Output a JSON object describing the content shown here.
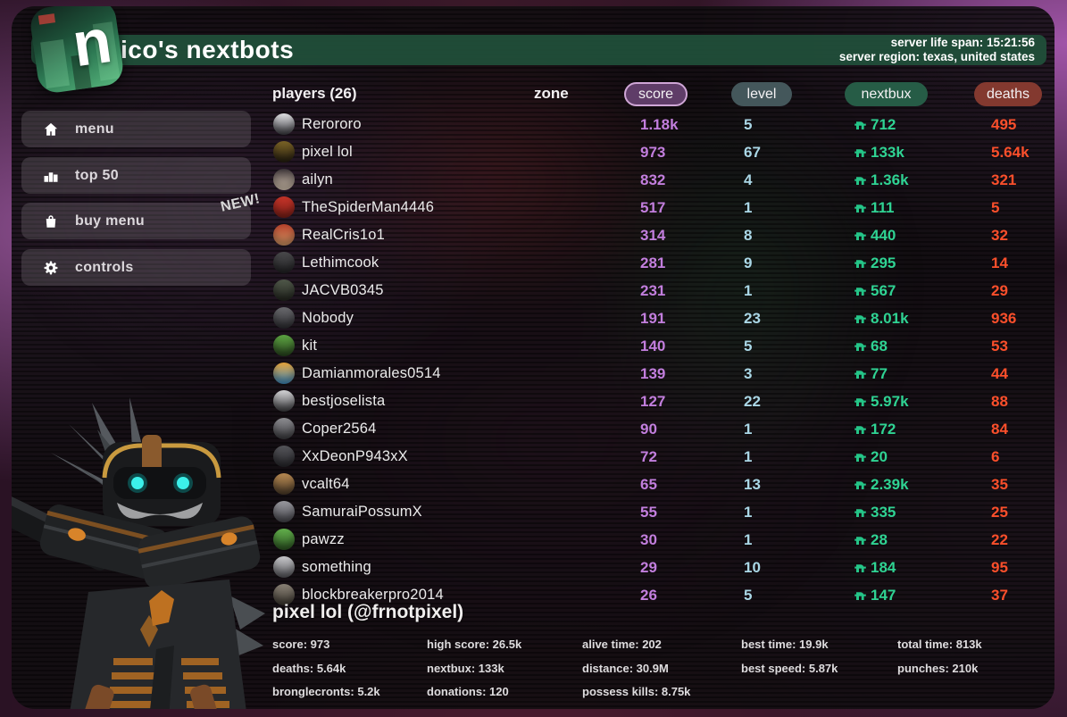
{
  "header": {
    "logo_letter": "n",
    "title": "ico's nextbots",
    "server_life_span": "server life span: 15:21:56",
    "server_region": "server region: texas, united states"
  },
  "sidebar": {
    "items": [
      {
        "label": "menu",
        "icon": "home-icon"
      },
      {
        "label": "top 50",
        "icon": "podium-icon"
      },
      {
        "label": "buy menu",
        "icon": "shopping-bag-icon",
        "badge": "NEW!"
      },
      {
        "label": "controls",
        "icon": "gear-icon"
      }
    ]
  },
  "leaderboard": {
    "players_header": "players (26)",
    "zone_header": "zone",
    "columns": [
      {
        "label": "score"
      },
      {
        "label": "level"
      },
      {
        "label": "nextbux"
      },
      {
        "label": "deaths"
      }
    ],
    "rows": [
      {
        "name": "Rerororo",
        "score": "1.18k",
        "level": "5",
        "nextbux": "712",
        "deaths": "495",
        "avatar": [
          "#e3e3e6",
          "#3a3a40"
        ]
      },
      {
        "name": "pixel lol",
        "score": "973",
        "level": "67",
        "nextbux": "133k",
        "deaths": "5.64k",
        "avatar": [
          "#7c6426",
          "#241d10"
        ]
      },
      {
        "name": "ailyn",
        "score": "832",
        "level": "4",
        "nextbux": "1.36k",
        "deaths": "321",
        "avatar": [
          "#3a3336",
          "#e4d2bd"
        ]
      },
      {
        "name": "TheSpiderMan4446",
        "score": "517",
        "level": "1",
        "nextbux": "111",
        "deaths": "5",
        "avatar": [
          "#c63429",
          "#7e1f17"
        ]
      },
      {
        "name": "RealCris1o1",
        "score": "314",
        "level": "8",
        "nextbux": "440",
        "deaths": "32",
        "avatar": [
          "#b5412c",
          "#d69a66"
        ]
      },
      {
        "name": "Lethimcook",
        "score": "281",
        "level": "9",
        "nextbux": "295",
        "deaths": "14",
        "avatar": [
          "#4a4a4c",
          "#222224"
        ]
      },
      {
        "name": "JACVB0345",
        "score": "231",
        "level": "1",
        "nextbux": "567",
        "deaths": "29",
        "avatar": [
          "#50584a",
          "#23261f"
        ]
      },
      {
        "name": "Nobody",
        "score": "191",
        "level": "23",
        "nextbux": "8.01k",
        "deaths": "936",
        "avatar": [
          "#6a6a6e",
          "#2c2c30"
        ]
      },
      {
        "name": "kit",
        "score": "140",
        "level": "5",
        "nextbux": "68",
        "deaths": "53",
        "avatar": [
          "#5da442",
          "#27431d"
        ]
      },
      {
        "name": "Damianmorales0514",
        "score": "139",
        "level": "3",
        "nextbux": "77",
        "deaths": "44",
        "avatar": [
          "#e8a33a",
          "#3f8ec4"
        ]
      },
      {
        "name": "bestjoselista",
        "score": "127",
        "level": "22",
        "nextbux": "5.97k",
        "deaths": "88",
        "avatar": [
          "#d6d6d8",
          "#3c3c40"
        ]
      },
      {
        "name": "Coper2564",
        "score": "90",
        "level": "1",
        "nextbux": "172",
        "deaths": "84",
        "avatar": [
          "#8e8e92",
          "#3a3a3e"
        ]
      },
      {
        "name": "XxDeonP943xX",
        "score": "72",
        "level": "1",
        "nextbux": "20",
        "deaths": "6",
        "avatar": [
          "#55555a",
          "#27272b"
        ]
      },
      {
        "name": "vcalt64",
        "score": "65",
        "level": "13",
        "nextbux": "2.39k",
        "deaths": "35",
        "avatar": [
          "#b98a52",
          "#4a3a28"
        ]
      },
      {
        "name": "SamuraiPossumX",
        "score": "55",
        "level": "1",
        "nextbux": "335",
        "deaths": "25",
        "avatar": [
          "#9a9aa0",
          "#45454b"
        ]
      },
      {
        "name": "pawzz",
        "score": "30",
        "level": "1",
        "nextbux": "28",
        "deaths": "22",
        "avatar": [
          "#63b04c",
          "#2c5522"
        ]
      },
      {
        "name": "something",
        "score": "29",
        "level": "10",
        "nextbux": "184",
        "deaths": "95",
        "avatar": [
          "#c9c9cc",
          "#55555a"
        ]
      },
      {
        "name": "blockbreakerpro2014",
        "score": "26",
        "level": "5",
        "nextbux": "147",
        "deaths": "37",
        "avatar": [
          "#8a8276",
          "#3b362e"
        ]
      }
    ]
  },
  "player_stats": {
    "title": "pixel lol (@frnotpixel)",
    "rows": [
      [
        {
          "label": "score",
          "value": "973"
        },
        {
          "label": "high score",
          "value": "26.5k"
        },
        {
          "label": "alive time",
          "value": "202"
        },
        {
          "label": "best time",
          "value": "19.9k"
        },
        {
          "label": "total time",
          "value": "813k"
        }
      ],
      [
        {
          "label": "deaths",
          "value": "5.64k"
        },
        {
          "label": "nextbux",
          "value": "133k"
        },
        {
          "label": "distance",
          "value": "30.9M"
        },
        {
          "label": "best speed",
          "value": "5.87k"
        },
        {
          "label": "punches",
          "value": "210k"
        }
      ],
      [
        {
          "label": "bronglecronts",
          "value": "5.2k"
        },
        {
          "label": "donations",
          "value": "120"
        },
        {
          "label": "possess kills",
          "value": "8.75k"
        }
      ]
    ]
  },
  "colors": {
    "header_green": "#21503b",
    "score_purple": "#c27edd",
    "level_blue": "#aad7e6",
    "nextbux_green": "#2fd393",
    "deaths_red": "#fb4f2b",
    "pill_score_bg": "#5f3d68",
    "pill_score_border": "#cfa6d6",
    "pill_level_bg": "#44575b",
    "pill_nextbux_bg": "#265c46",
    "pill_deaths_bg": "#83392f"
  }
}
